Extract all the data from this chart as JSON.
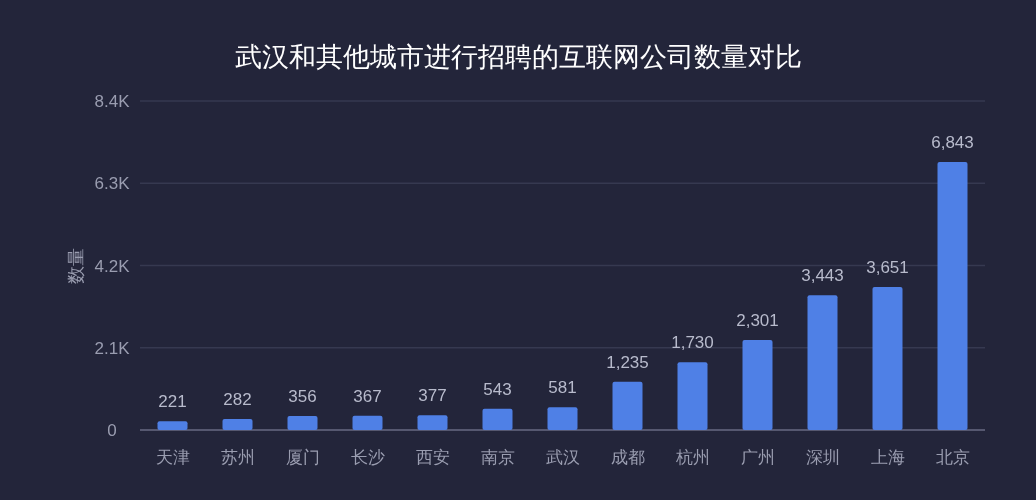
{
  "chart_data": {
    "type": "bar",
    "title": "武汉和其他城市进行招聘的互联网公司数量对比",
    "ylabel": "数量",
    "categories": [
      "天津",
      "苏州",
      "厦门",
      "长沙",
      "西安",
      "南京",
      "武汉",
      "成都",
      "杭州",
      "广州",
      "深圳",
      "上海",
      "北京"
    ],
    "values": [
      221,
      282,
      356,
      367,
      377,
      543,
      581,
      1235,
      1730,
      2301,
      3443,
      3651,
      6843
    ],
    "value_labels": [
      "221",
      "282",
      "356",
      "367",
      "377",
      "543",
      "581",
      "1,235",
      "1,730",
      "2,301",
      "3,443",
      "3,651",
      "6,843"
    ],
    "color": "#4f80e6",
    "ylim": [
      0,
      8400
    ],
    "yticks": [
      0,
      {
        "value": 2100,
        "label": "2.1K"
      },
      {
        "value": 4200,
        "label": "4.2K"
      },
      {
        "value": 6300,
        "label": "6.3K"
      },
      {
        "value": 8400,
        "label": "8.4K"
      }
    ],
    "grid": "y",
    "legend": false
  }
}
